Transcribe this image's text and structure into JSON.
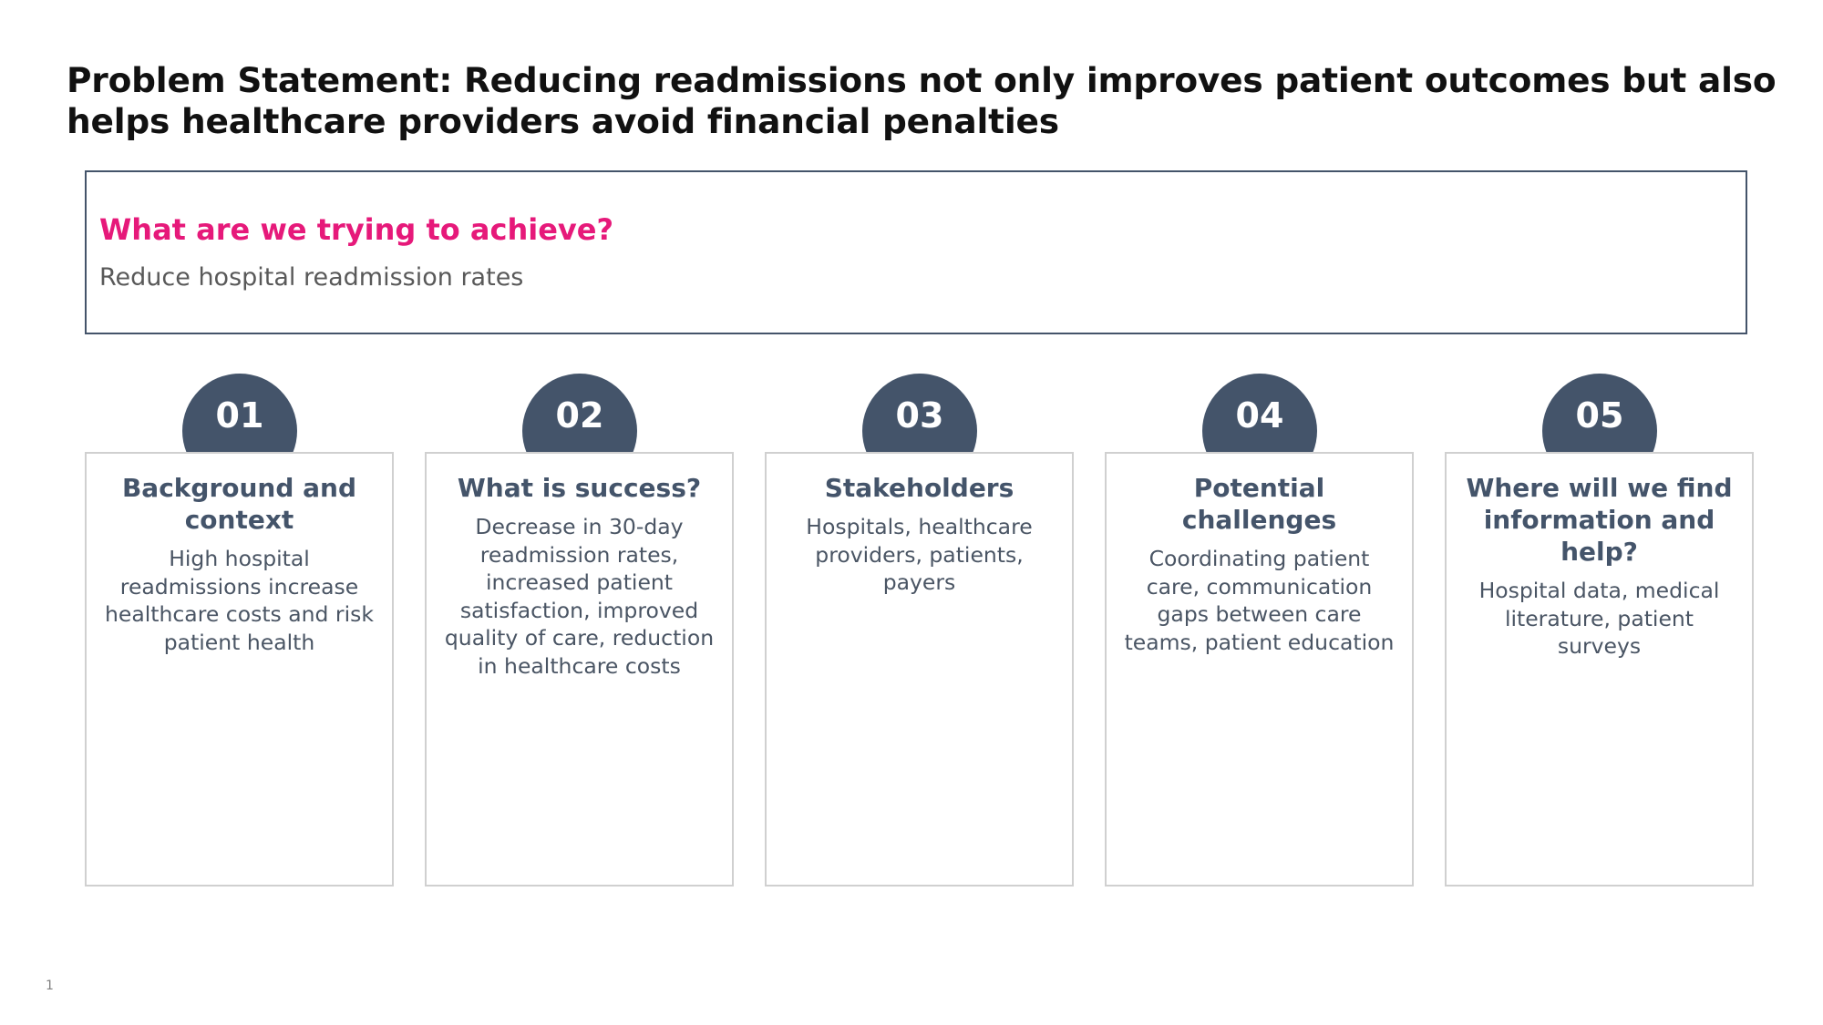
{
  "slide": {
    "title": "Problem Statement: Reducing readmissions not only improves patient outcomes but also helps healthcare providers avoid financial penalties",
    "goal": {
      "question": "What are we trying to achieve?",
      "answer": "Reduce hospital readmission rates"
    },
    "steps": [
      {
        "number": "01",
        "title": "Background and context",
        "body": "High hospital readmissions increase healthcare costs and risk patient health"
      },
      {
        "number": "02",
        "title": "What is success?",
        "body": "Decrease in 30-day readmission rates, increased patient satisfaction, improved quality of care, reduction in healthcare costs"
      },
      {
        "number": "03",
        "title": "Stakeholders",
        "body": "Hospitals, healthcare providers, patients, payers"
      },
      {
        "number": "04",
        "title": "Potential challenges",
        "body": "Coordinating patient care, communication gaps between care teams, patient education"
      },
      {
        "number": "05",
        "title": "Where will we find information and help?",
        "body": "Hospital data, medical literature, patient surveys"
      }
    ],
    "page_number": "1"
  },
  "colors": {
    "accent": "#e6197a",
    "primary": "#44546a",
    "card_border": "#d0d0d0"
  }
}
